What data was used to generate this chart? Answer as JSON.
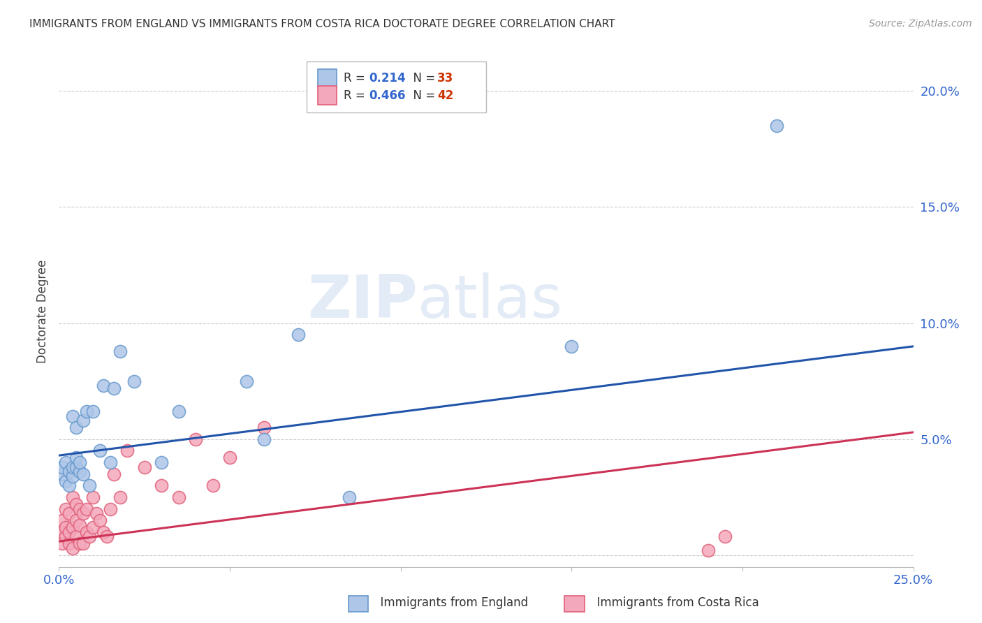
{
  "title": "IMMIGRANTS FROM ENGLAND VS IMMIGRANTS FROM COSTA RICA DOCTORATE DEGREE CORRELATION CHART",
  "source": "Source: ZipAtlas.com",
  "ylabel": "Doctorate Degree",
  "xlim": [
    0.0,
    0.25
  ],
  "ylim": [
    -0.005,
    0.215
  ],
  "england_color": "#aec6e8",
  "england_edge": "#6699cc",
  "costarica_color": "#f4a8bb",
  "costarica_edge": "#e0607a",
  "england_line_color": "#2255aa",
  "costarica_line_color": "#cc3355",
  "legend_R_england": "0.214",
  "legend_N_england": "33",
  "legend_R_costarica": "0.466",
  "legend_N_costarica": "42",
  "watermark_zip": "ZIP",
  "watermark_atlas": "atlas",
  "england_x": [
    0.001,
    0.001,
    0.002,
    0.002,
    0.003,
    0.003,
    0.004,
    0.004,
    0.004,
    0.005,
    0.005,
    0.005,
    0.006,
    0.006,
    0.007,
    0.007,
    0.008,
    0.009,
    0.01,
    0.012,
    0.013,
    0.015,
    0.016,
    0.018,
    0.022,
    0.03,
    0.035,
    0.055,
    0.06,
    0.07,
    0.085,
    0.15,
    0.21
  ],
  "england_y": [
    0.035,
    0.038,
    0.032,
    0.04,
    0.03,
    0.036,
    0.034,
    0.038,
    0.06,
    0.038,
    0.042,
    0.055,
    0.036,
    0.04,
    0.035,
    0.058,
    0.062,
    0.03,
    0.062,
    0.045,
    0.073,
    0.04,
    0.072,
    0.088,
    0.075,
    0.04,
    0.062,
    0.075,
    0.05,
    0.095,
    0.025,
    0.09,
    0.185
  ],
  "costarica_x": [
    0.001,
    0.001,
    0.001,
    0.002,
    0.002,
    0.002,
    0.003,
    0.003,
    0.003,
    0.004,
    0.004,
    0.004,
    0.005,
    0.005,
    0.005,
    0.006,
    0.006,
    0.006,
    0.007,
    0.007,
    0.008,
    0.008,
    0.009,
    0.01,
    0.01,
    0.011,
    0.012,
    0.013,
    0.014,
    0.015,
    0.016,
    0.018,
    0.02,
    0.025,
    0.03,
    0.035,
    0.04,
    0.045,
    0.05,
    0.06,
    0.19,
    0.195
  ],
  "costarica_y": [
    0.005,
    0.01,
    0.015,
    0.008,
    0.012,
    0.02,
    0.005,
    0.01,
    0.018,
    0.003,
    0.012,
    0.025,
    0.008,
    0.015,
    0.022,
    0.005,
    0.013,
    0.02,
    0.005,
    0.018,
    0.01,
    0.02,
    0.008,
    0.012,
    0.025,
    0.018,
    0.015,
    0.01,
    0.008,
    0.02,
    0.035,
    0.025,
    0.045,
    0.038,
    0.03,
    0.025,
    0.05,
    0.03,
    0.042,
    0.055,
    0.002,
    0.008
  ],
  "eng_line_x0": 0.0,
  "eng_line_y0": 0.043,
  "eng_line_x1": 0.25,
  "eng_line_y1": 0.09,
  "cr_line_x0": 0.0,
  "cr_line_y0": 0.006,
  "cr_line_x1": 0.25,
  "cr_line_y1": 0.053
}
